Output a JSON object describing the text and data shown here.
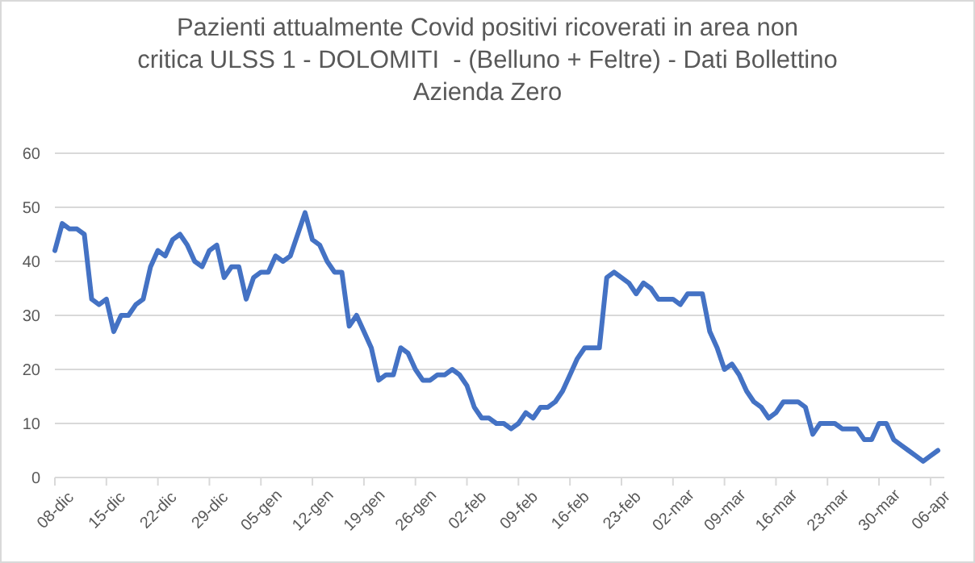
{
  "chart_data": {
    "type": "line",
    "title": "Pazienti attualmente Covid positivi ricoverati in area non critica ULSS 1 - DOLOMITI  - (Belluno + Feltre) - Dati Bollettino Azienda Zero",
    "categories": [
      "08-dic",
      null,
      null,
      null,
      null,
      null,
      null,
      "15-dic",
      null,
      null,
      null,
      null,
      null,
      null,
      "22-dic",
      null,
      null,
      null,
      null,
      null,
      null,
      "29-dic",
      null,
      null,
      null,
      null,
      null,
      null,
      "05-gen",
      null,
      null,
      null,
      null,
      null,
      null,
      "12-gen",
      null,
      null,
      null,
      null,
      null,
      null,
      "19-gen",
      null,
      null,
      null,
      null,
      null,
      null,
      "26-gen",
      null,
      null,
      null,
      null,
      null,
      null,
      "02-feb",
      null,
      null,
      null,
      null,
      null,
      null,
      "09-feb",
      null,
      null,
      null,
      null,
      null,
      null,
      "16-feb",
      null,
      null,
      null,
      null,
      null,
      null,
      "23-feb",
      null,
      null,
      null,
      null,
      null,
      null,
      "02-mar",
      null,
      null,
      null,
      null,
      null,
      null,
      "09-mar",
      null,
      null,
      null,
      null,
      null,
      null,
      "16-mar",
      null,
      null,
      null,
      null,
      null,
      null,
      "23-mar",
      null,
      null,
      null,
      null,
      null,
      null,
      "30-mar",
      null,
      null,
      null,
      null,
      null,
      null,
      "06-apr",
      null
    ],
    "series": [
      {
        "color": "#4472c4",
        "values": [
          42,
          47,
          46,
          46,
          45,
          33,
          32,
          33,
          27,
          30,
          30,
          32,
          33,
          39,
          42,
          41,
          44,
          45,
          43,
          40,
          39,
          42,
          43,
          37,
          39,
          39,
          33,
          37,
          38,
          38,
          41,
          40,
          41,
          45,
          49,
          44,
          43,
          40,
          38,
          38,
          28,
          30,
          27,
          24,
          18,
          19,
          19,
          24,
          23,
          20,
          18,
          18,
          19,
          19,
          20,
          19,
          17,
          13,
          11,
          11,
          10,
          10,
          9,
          10,
          12,
          11,
          13,
          13,
          14,
          16,
          19,
          22,
          24,
          24,
          24,
          37,
          38,
          37,
          36,
          34,
          36,
          35,
          33,
          33,
          33,
          32,
          34,
          34,
          34,
          27,
          24,
          20,
          21,
          19,
          16,
          14,
          13,
          11,
          12,
          14,
          14,
          14,
          13,
          8,
          10,
          10,
          10,
          9,
          9,
          9,
          7,
          7,
          10,
          10,
          7,
          6,
          5,
          4,
          3,
          4,
          5
        ]
      }
    ],
    "ylim": [
      0,
      60
    ],
    "yticks": [
      0,
      10,
      20,
      30,
      40,
      50,
      60
    ],
    "grid": "y",
    "marker": "none",
    "line_style": "solid"
  }
}
